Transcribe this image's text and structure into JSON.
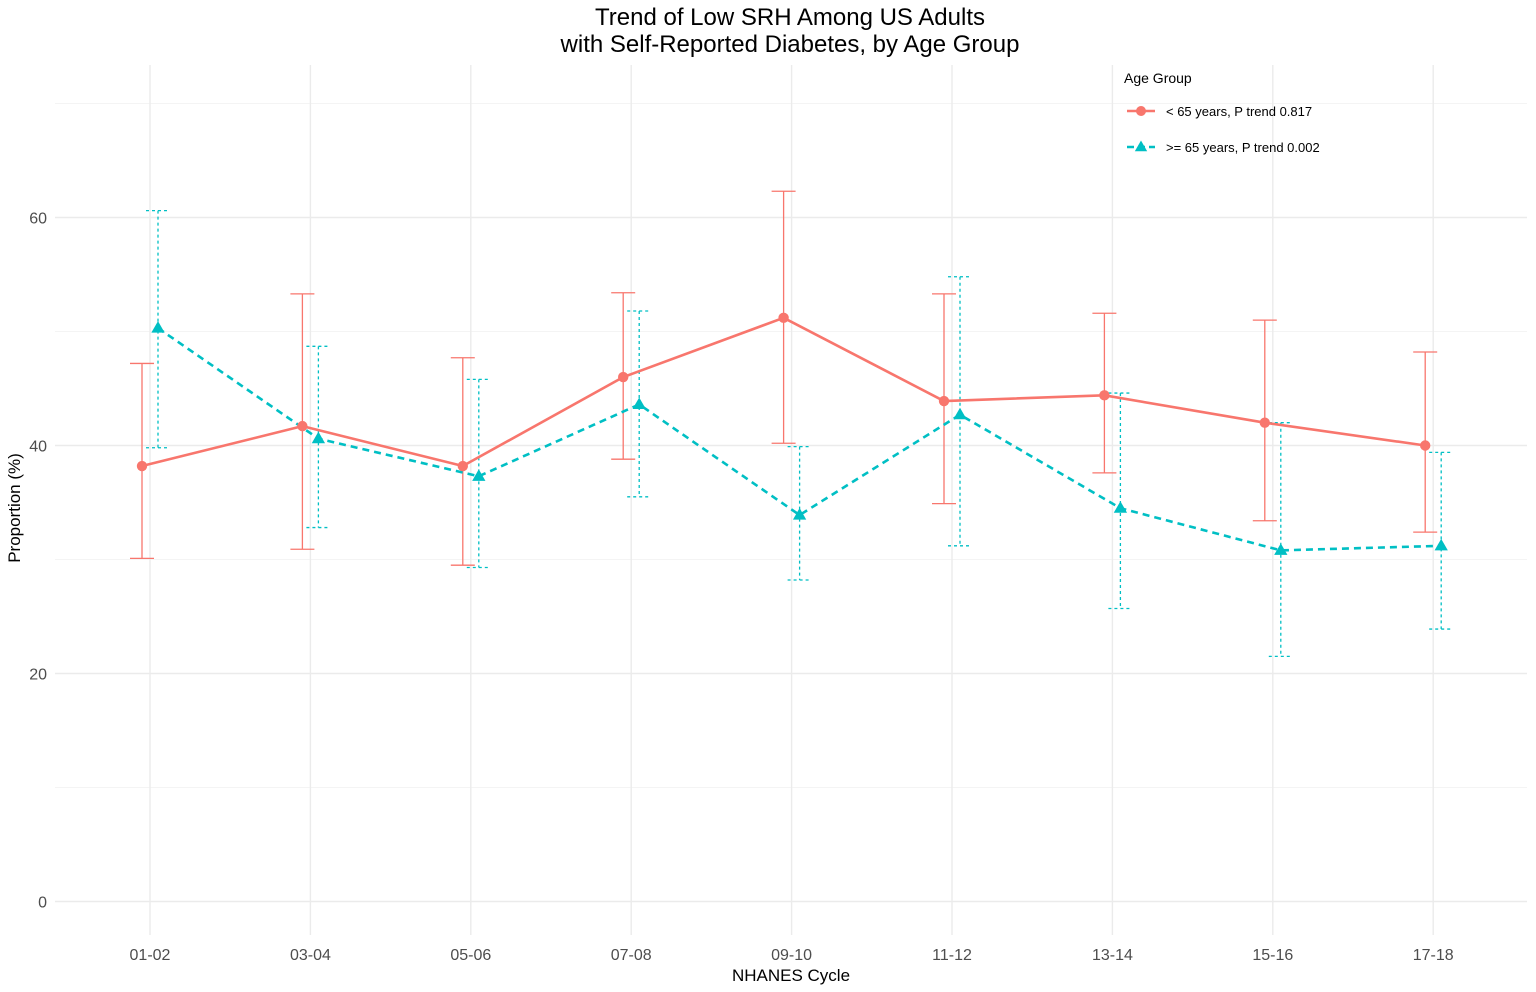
{
  "chart_data": {
    "type": "line",
    "title_line1": "Trend of Low SRH Among US Adults",
    "title_line2": "with Self-Reported Diabetes, by Age Group",
    "xlabel": "NHANES Cycle",
    "ylabel": "Proportion (%)",
    "categories": [
      "01-02",
      "03-04",
      "05-06",
      "07-08",
      "09-10",
      "11-12",
      "13-14",
      "15-16",
      "17-18"
    ],
    "ylim": [
      -2.5,
      73
    ],
    "yticks": [
      0,
      20,
      40,
      60
    ],
    "grid": true,
    "legend": {
      "title": "Age Group",
      "position": "top-right"
    },
    "series": [
      {
        "name": "< 65 years, P trend 0.817",
        "color": "#F8766D",
        "line_style": "solid",
        "marker": "circle",
        "values": [
          38.2,
          41.7,
          38.2,
          46.0,
          51.2,
          43.9,
          44.4,
          42.0,
          40.0
        ],
        "lower": [
          30.1,
          30.9,
          29.5,
          38.8,
          40.2,
          34.9,
          37.6,
          33.4,
          32.4
        ],
        "upper": [
          47.2,
          53.3,
          47.7,
          53.4,
          62.3,
          53.3,
          51.6,
          51.0,
          48.2
        ]
      },
      {
        "name": ">= 65 years, P trend 0.002",
        "color": "#00BFC4",
        "line_style": "dashed",
        "marker": "triangle",
        "values": [
          50.3,
          40.6,
          37.3,
          43.6,
          33.9,
          42.7,
          34.5,
          30.8,
          31.2
        ],
        "lower": [
          39.8,
          32.8,
          29.3,
          35.5,
          28.2,
          31.2,
          25.7,
          21.5,
          23.9
        ],
        "upper": [
          60.6,
          48.7,
          45.8,
          51.8,
          39.9,
          54.8,
          44.6,
          42.0,
          39.4
        ]
      }
    ]
  }
}
